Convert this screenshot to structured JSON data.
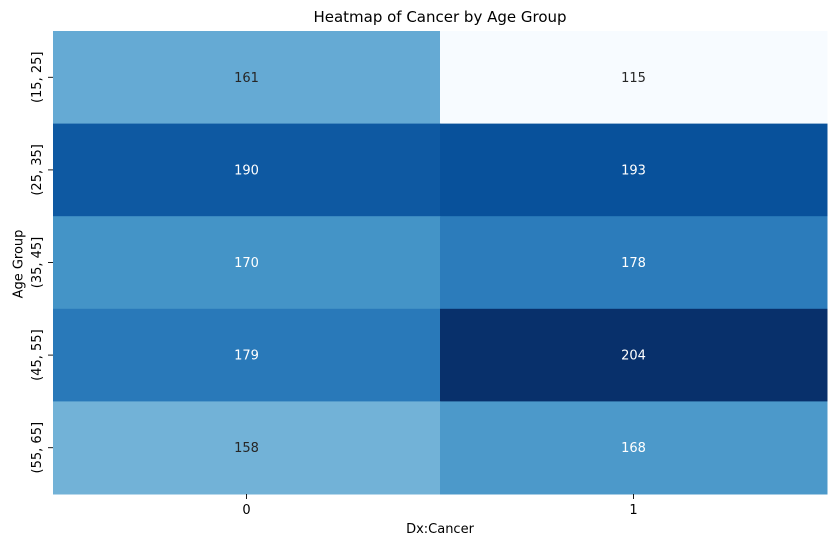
{
  "chart_data": {
    "type": "heatmap",
    "title": "Heatmap of Cancer by Age Group",
    "xlabel": "Dx:Cancer",
    "ylabel": "Age Group",
    "x_categories": [
      "0",
      "1"
    ],
    "y_categories": [
      "(15, 25]",
      "(25, 35]",
      "(35, 45]",
      "(45, 55]",
      "(55, 65]"
    ],
    "values": [
      [
        161,
        115
      ],
      [
        190,
        193
      ],
      [
        170,
        178
      ],
      [
        179,
        204
      ],
      [
        158,
        168
      ]
    ],
    "colormap": "Blues",
    "colorbar": false,
    "annotations": true,
    "vmin": 115,
    "vmax": 204,
    "annotation_colors": {
      "light": "#ffffff",
      "dark": "#262626"
    }
  }
}
